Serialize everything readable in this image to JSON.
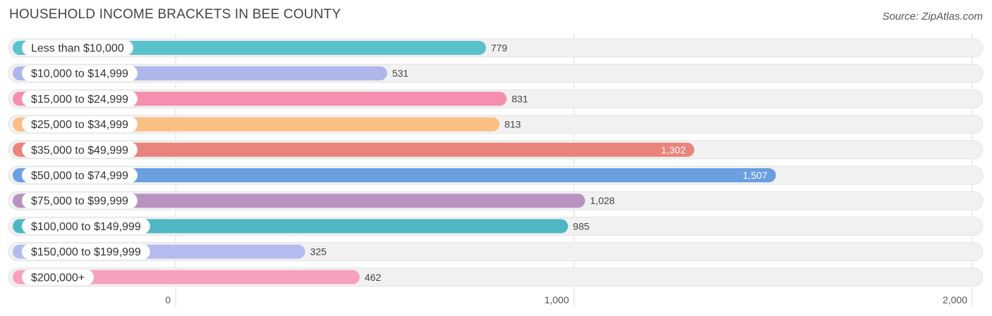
{
  "title": "HOUSEHOLD INCOME BRACKETS IN BEE COUNTY",
  "source": "Source: ZipAtlas.com",
  "chart_data": {
    "type": "bar",
    "orientation": "horizontal",
    "categories": [
      "Less than $10,000",
      "$10,000 to $14,999",
      "$15,000 to $24,999",
      "$25,000 to $34,999",
      "$35,000 to $49,999",
      "$50,000 to $74,999",
      "$75,000 to $99,999",
      "$100,000 to $149,999",
      "$150,000 to $199,999",
      "$200,000+"
    ],
    "values": [
      779,
      531,
      831,
      813,
      1302,
      1507,
      1028,
      985,
      325,
      462
    ],
    "value_labels": [
      "779",
      "531",
      "831",
      "813",
      "1,302",
      "1,507",
      "1,028",
      "985",
      "325",
      "462"
    ],
    "colors": [
      "#5bc2cb",
      "#aeb6ea",
      "#f68fae",
      "#fbbf84",
      "#e9837b",
      "#6a9fe0",
      "#b893c1",
      "#4fb6c4",
      "#b4bcef",
      "#f6a1bd"
    ],
    "xlim": [
      0,
      2000
    ],
    "xticks": [
      0,
      1000,
      2000
    ],
    "xtick_labels": [
      "0",
      "1,000",
      "2,000"
    ],
    "grid": true
  }
}
